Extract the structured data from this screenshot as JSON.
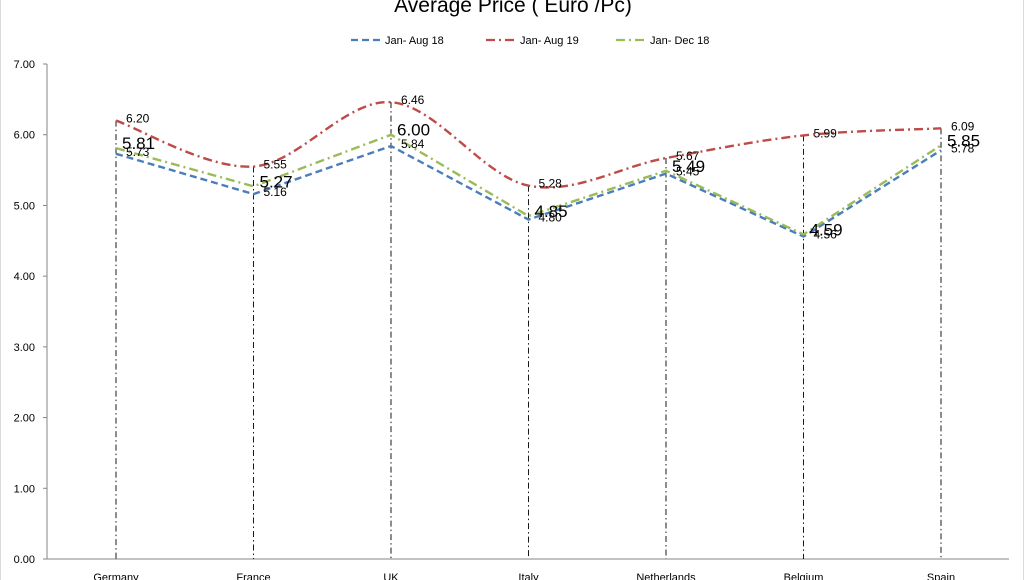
{
  "chart_data": {
    "type": "line",
    "title": "Average Price ( Euro /Pc)",
    "xlabel": "",
    "ylabel": "",
    "categories": [
      "Germany",
      "France",
      "UK",
      "Italy",
      "Netherlands",
      "Belgium",
      "Spain"
    ],
    "ylim": [
      0,
      7
    ],
    "yticks": [
      "0.00",
      "1.00",
      "2.00",
      "3.00",
      "4.00",
      "5.00",
      "6.00",
      "7.00"
    ],
    "grid": false,
    "drop_lines": true,
    "legend_position": "top",
    "series": [
      {
        "name": "Jan- Aug 18",
        "color": "#4a7ebb",
        "dash": "dashed",
        "labels_large": false,
        "smooth": false,
        "values": [
          5.73,
          5.16,
          5.84,
          4.8,
          5.45,
          4.56,
          5.78
        ],
        "labels": [
          "5.73",
          "5.16",
          "5.84",
          "4.80",
          "5.45",
          "4.56",
          "5.78"
        ]
      },
      {
        "name": "Jan- Aug 19",
        "color": "#be4b48",
        "dash": "dash-dot",
        "labels_large": false,
        "smooth": true,
        "values": [
          6.2,
          5.55,
          6.46,
          5.28,
          5.67,
          5.99,
          6.09
        ],
        "labels": [
          "6.20",
          "5.55",
          "6.46",
          "5.28",
          "5.67",
          "5.99",
          "6.09"
        ]
      },
      {
        "name": "Jan- Dec 18",
        "color": "#9bbb59",
        "dash": "dash-dot",
        "labels_large": true,
        "smooth": false,
        "values": [
          5.81,
          5.27,
          6.0,
          4.85,
          5.49,
          4.59,
          5.85
        ],
        "labels": [
          "5.81",
          "5.27",
          "6.00",
          "4.85",
          "5.49",
          "4.59",
          "5.85"
        ]
      }
    ]
  }
}
